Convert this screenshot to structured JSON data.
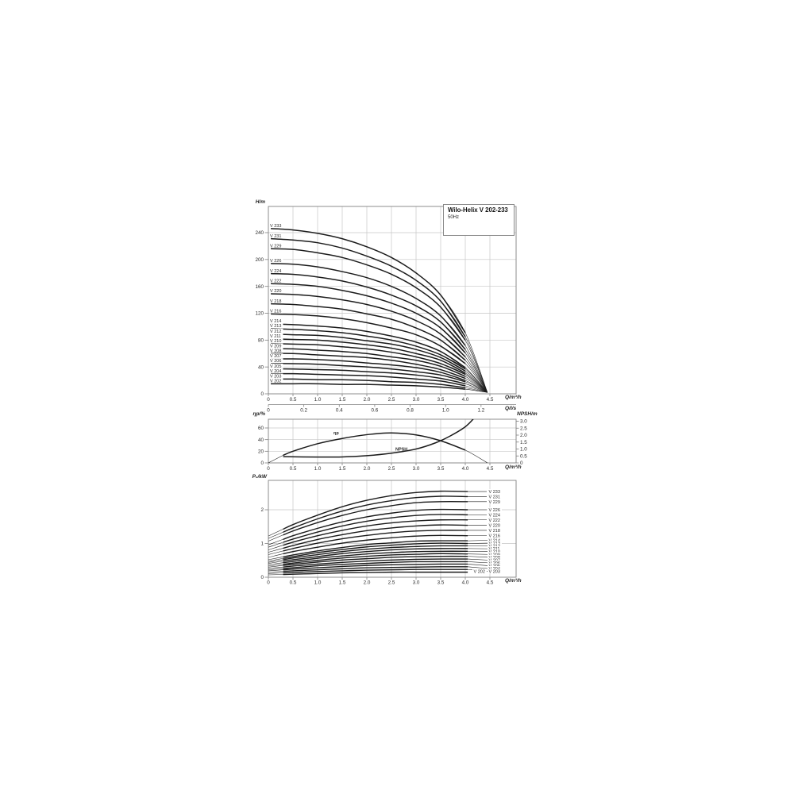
{
  "title_box": {
    "title": "Wilo-Helix V 202-233",
    "frequency": "50Hz"
  },
  "chart_data": {
    "type": "line",
    "head_chart": {
      "ylabel": "H/m",
      "xlabel": "Q/m³/h",
      "x2label": "Q/l/s",
      "y_ticks": [
        "0",
        "40",
        "80",
        "120",
        "160",
        "200",
        "240"
      ],
      "x_ticks": [
        "0",
        "0.5",
        "1.0",
        "1.5",
        "2.0",
        "2.5",
        "3.0",
        "3.5",
        "4.0",
        "4.5"
      ],
      "x2_ticks": [
        "0",
        "0.2",
        "0.4",
        "0.6",
        "0.8",
        "1.0",
        "1.2"
      ],
      "ylim": [
        0,
        280
      ],
      "xlim": [
        0,
        5.0
      ],
      "grid": "on"
    },
    "efficiency_npsh_chart": {
      "ylabel_left": "ηp/%",
      "ylabel_right": "NPSH/m",
      "xlabel": "Q/m³/h",
      "y_left_ticks": [
        "0",
        "20",
        "40",
        "60"
      ],
      "y_right_ticks": [
        "0",
        "0.5",
        "1.0",
        "1.5",
        "2.0",
        "2.5",
        "3.0"
      ],
      "x_ticks": [
        "0",
        "0.5",
        "1.0",
        "1.5",
        "2.0",
        "2.5",
        "3.0",
        "3.5",
        "4.0",
        "4.5"
      ],
      "ylim_left": [
        0,
        75
      ],
      "ylim_right": [
        0,
        3.15
      ],
      "curve_labels": {
        "eta": "ηp",
        "npsh": "NPSH"
      },
      "eta_points": [
        [
          0,
          0
        ],
        [
          0.3,
          13
        ],
        [
          0.5,
          20
        ],
        [
          1.0,
          33
        ],
        [
          1.5,
          42
        ],
        [
          2.0,
          48.5
        ],
        [
          2.5,
          51.5
        ],
        [
          3.0,
          48
        ],
        [
          3.5,
          38
        ],
        [
          4.0,
          22
        ],
        [
          4.45,
          0
        ]
      ],
      "npsh_points": [
        [
          0.3,
          0.45
        ],
        [
          1.0,
          0.42
        ],
        [
          1.5,
          0.43
        ],
        [
          2.0,
          0.52
        ],
        [
          2.5,
          0.7
        ],
        [
          3.0,
          1.0
        ],
        [
          3.4,
          1.45
        ],
        [
          3.7,
          1.95
        ],
        [
          4.0,
          2.6
        ],
        [
          4.2,
          3.3
        ]
      ]
    },
    "power_chart": {
      "ylabel": "P₂/kW",
      "xlabel": "Q/m³/h",
      "y_ticks": [
        "0",
        "1",
        "2"
      ],
      "x_ticks": [
        "0",
        "0.5",
        "1.0",
        "1.5",
        "2.0",
        "2.5",
        "3.0",
        "3.5",
        "4.0",
        "4.5"
      ],
      "ylim": [
        0,
        2.85
      ]
    },
    "q_head_samples": [
      0.05,
      0.5,
      1.0,
      1.5,
      2.0,
      2.5,
      3.0,
      3.5,
      4.0,
      4.45
    ],
    "q_power_samples": [
      0,
      0.5,
      1.0,
      1.5,
      2.0,
      2.5,
      3.0,
      3.5,
      4.05
    ],
    "models": [
      {
        "name": "V 233",
        "shutoff_head_m": 246,
        "head_m": [
          246,
          244,
          239,
          231,
          219,
          203,
          180,
          147,
          91,
          2
        ],
        "p2_kw": [
          1.22,
          1.56,
          1.84,
          2.09,
          2.28,
          2.42,
          2.51,
          2.55,
          2.54
        ]
      },
      {
        "name": "V 231",
        "shutoff_head_m": 231,
        "head_m": [
          231,
          229,
          225,
          217,
          205,
          190,
          169,
          138,
          85,
          2
        ],
        "p2_kw": [
          1.15,
          1.46,
          1.73,
          1.96,
          2.14,
          2.27,
          2.36,
          2.4,
          2.39
        ]
      },
      {
        "name": "V 229",
        "shutoff_head_m": 216,
        "head_m": [
          216,
          215,
          210,
          203,
          192,
          178,
          158,
          129,
          80,
          2
        ],
        "p2_kw": [
          1.07,
          1.37,
          1.62,
          1.83,
          2.0,
          2.12,
          2.21,
          2.24,
          2.24
        ]
      },
      {
        "name": "V 226",
        "shutoff_head_m": 194,
        "head_m": [
          194,
          193,
          189,
          182,
          173,
          160,
          142,
          116,
          72,
          2
        ],
        "p2_kw": [
          0.96,
          1.23,
          1.45,
          1.64,
          1.79,
          1.9,
          1.98,
          2.01,
          2.0
        ]
      },
      {
        "name": "V 224",
        "shutoff_head_m": 179,
        "head_m": [
          179,
          178,
          174,
          168,
          159,
          147,
          131,
          107,
          66,
          2
        ],
        "p2_kw": [
          0.89,
          1.13,
          1.34,
          1.52,
          1.66,
          1.76,
          1.83,
          1.86,
          1.85
        ]
      },
      {
        "name": "V 222",
        "shutoff_head_m": 164,
        "head_m": [
          164,
          163,
          160,
          154,
          146,
          135,
          120,
          98,
          61,
          2
        ],
        "p2_kw": [
          0.81,
          1.04,
          1.23,
          1.39,
          1.52,
          1.61,
          1.67,
          1.7,
          1.7
        ]
      },
      {
        "name": "V 220",
        "shutoff_head_m": 149,
        "head_m": [
          149,
          148,
          145,
          140,
          133,
          123,
          109,
          89,
          55,
          2
        ],
        "p2_kw": [
          0.74,
          0.94,
          1.12,
          1.26,
          1.38,
          1.46,
          1.52,
          1.55,
          1.54
        ]
      },
      {
        "name": "V 218",
        "shutoff_head_m": 134,
        "head_m": [
          134,
          133,
          130,
          126,
          119,
          111,
          98,
          80,
          50,
          2
        ],
        "p2_kw": [
          0.67,
          0.85,
          1.01,
          1.14,
          1.24,
          1.32,
          1.37,
          1.39,
          1.39
        ]
      },
      {
        "name": "V 216",
        "shutoff_head_m": 119,
        "head_m": [
          119,
          118,
          116,
          112,
          106,
          98,
          88,
          71,
          45,
          2
        ],
        "p2_kw": [
          0.59,
          0.76,
          0.89,
          1.01,
          1.1,
          1.17,
          1.22,
          1.24,
          1.23
        ]
      },
      {
        "name": "V 214",
        "shutoff_head_m": 104,
        "head_m": [
          104,
          103,
          101,
          98,
          93,
          86,
          77,
          63,
          39,
          2
        ],
        "p2_kw": [
          0.52,
          0.66,
          0.78,
          0.88,
          0.97,
          1.02,
          1.07,
          1.08,
          1.08
        ]
      },
      {
        "name": "V 213",
        "shutoff_head_m": 97,
        "head_m": [
          97,
          96,
          94,
          91,
          86,
          80,
          71,
          58,
          37,
          2
        ],
        "p2_kw": [
          0.48,
          0.61,
          0.73,
          0.82,
          0.9,
          0.95,
          0.99,
          1.01,
          1.0
        ]
      },
      {
        "name": "V 212",
        "shutoff_head_m": 89,
        "head_m": [
          89,
          88,
          87,
          84,
          79,
          74,
          66,
          54,
          34,
          2
        ],
        "p2_kw": [
          0.44,
          0.57,
          0.67,
          0.76,
          0.83,
          0.88,
          0.91,
          0.93,
          0.93
        ]
      },
      {
        "name": "V 211",
        "shutoff_head_m": 82,
        "head_m": [
          82,
          81,
          80,
          77,
          73,
          68,
          60,
          50,
          31,
          2
        ],
        "p2_kw": [
          0.41,
          0.52,
          0.61,
          0.7,
          0.76,
          0.81,
          0.84,
          0.85,
          0.85
        ]
      },
      {
        "name": "V 210",
        "shutoff_head_m": 75,
        "head_m": [
          75,
          74,
          73,
          70,
          67,
          62,
          55,
          45,
          29,
          2
        ],
        "p2_kw": [
          0.37,
          0.47,
          0.56,
          0.63,
          0.69,
          0.73,
          0.76,
          0.77,
          0.77
        ]
      },
      {
        "name": "V 209",
        "shutoff_head_m": 67,
        "head_m": [
          67,
          67,
          65,
          63,
          60,
          55,
          50,
          41,
          26,
          2
        ],
        "p2_kw": [
          0.33,
          0.42,
          0.5,
          0.57,
          0.62,
          0.66,
          0.68,
          0.7,
          0.69
        ]
      },
      {
        "name": "V 208",
        "shutoff_head_m": 60,
        "head_m": [
          60,
          60,
          58,
          56,
          54,
          50,
          44,
          36,
          23,
          2
        ],
        "p2_kw": [
          0.3,
          0.38,
          0.45,
          0.51,
          0.55,
          0.59,
          0.61,
          0.62,
          0.62
        ]
      },
      {
        "name": "V 207",
        "shutoff_head_m": 52,
        "head_m": [
          52,
          52,
          51,
          49,
          46,
          43,
          39,
          32,
          20,
          2
        ],
        "p2_kw": [
          0.26,
          0.33,
          0.39,
          0.44,
          0.48,
          0.51,
          0.53,
          0.54,
          0.54
        ]
      },
      {
        "name": "V 206",
        "shutoff_head_m": 45,
        "head_m": [
          45,
          45,
          44,
          42,
          40,
          37,
          33,
          28,
          18,
          2
        ],
        "p2_kw": [
          0.22,
          0.28,
          0.34,
          0.38,
          0.41,
          0.44,
          0.46,
          0.46,
          0.46
        ]
      },
      {
        "name": "V 205",
        "shutoff_head_m": 37,
        "head_m": [
          37,
          37,
          36,
          35,
          33,
          31,
          28,
          23,
          15,
          2
        ],
        "p2_kw": [
          0.19,
          0.24,
          0.28,
          0.32,
          0.35,
          0.37,
          0.38,
          0.39,
          0.39
        ]
      },
      {
        "name": "V 204",
        "shutoff_head_m": 30,
        "head_m": [
          30,
          30,
          29,
          28,
          27,
          25,
          22,
          19,
          12,
          2
        ],
        "p2_kw": [
          0.15,
          0.19,
          0.22,
          0.25,
          0.28,
          0.29,
          0.3,
          0.31,
          0.31
        ]
      },
      {
        "name": "V 203",
        "shutoff_head_m": 22,
        "head_m": [
          22,
          22,
          21,
          21,
          20,
          18,
          17,
          14,
          9,
          2
        ],
        "p2_kw": [
          0.11,
          0.14,
          0.17,
          0.19,
          0.21,
          0.22,
          0.23,
          0.23,
          0.23
        ]
      },
      {
        "name": "V 202",
        "shutoff_head_m": 15,
        "head_m": [
          15,
          15,
          15,
          14,
          14,
          13,
          12,
          10,
          7,
          2
        ],
        "p2_kw": [
          0.07,
          0.09,
          0.11,
          0.13,
          0.14,
          0.15,
          0.15,
          0.15,
          0.15
        ]
      }
    ],
    "colors": {
      "curve": "#1b1b1b",
      "grid": "#c6c6c6",
      "border": "#828282",
      "text": "#2a2a2a"
    }
  }
}
